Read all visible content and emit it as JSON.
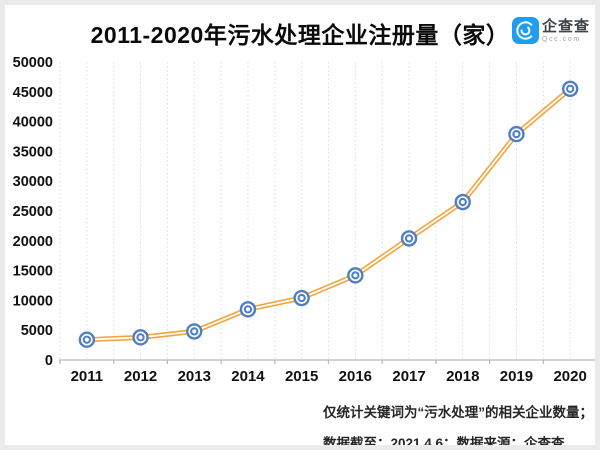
{
  "header": {
    "title": "2011-2020年污水处理企业注册量（家）",
    "logo": {
      "name": "企查查",
      "domain": "Qcc.com",
      "color": "#1e9ef0"
    }
  },
  "chart_data": {
    "type": "line",
    "title": "2011-2020年污水处理企业注册量（家）",
    "categories": [
      "2011",
      "2012",
      "2013",
      "2014",
      "2015",
      "2016",
      "2017",
      "2018",
      "2019",
      "2020"
    ],
    "series": [
      {
        "name": "污水处理企业注册量",
        "values": [
          3400,
          3800,
          4800,
          8500,
          10400,
          14200,
          20400,
          26500,
          37900,
          45500
        ]
      }
    ],
    "ylim": [
      0,
      50000
    ],
    "ytick_step": 5000,
    "xlabel": "",
    "ylabel": "",
    "grid": "vertical-dotted",
    "legend_position": "none",
    "colors": {
      "line": "#f2a43c",
      "line_inner": "#ffffff",
      "marker_ring": "#4e7fc4",
      "marker_fill": "#ffffff",
      "gridline": "#dcdcdc",
      "axis": "#b7b7b7",
      "tick_label": "#111111"
    }
  },
  "footer": {
    "line1": "仅统计关键词为“污水处理”的相关企业数量；",
    "line2": "数据截至：2021.4.6；数据来源：企查查"
  }
}
